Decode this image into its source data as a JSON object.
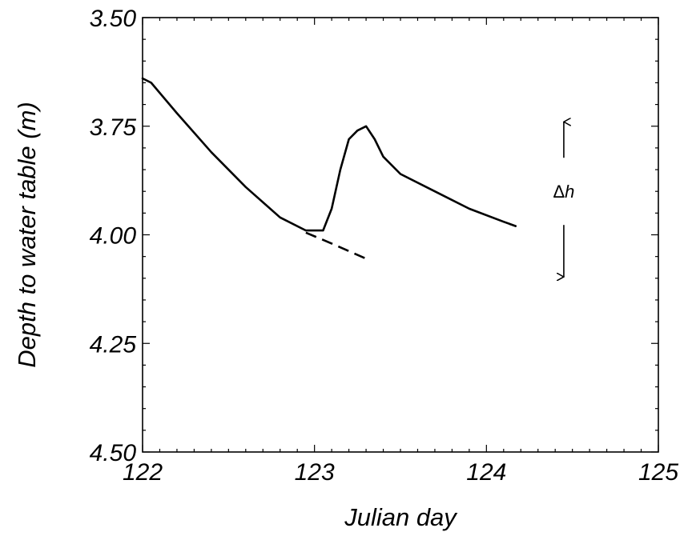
{
  "chart_data": {
    "type": "line",
    "xlabel": "Julian day",
    "ylabel": "Depth to water table (m)",
    "xlim": [
      122,
      125
    ],
    "ylim": [
      3.5,
      4.5
    ],
    "y_inverted": true,
    "grid": false,
    "xticks": [
      122,
      123,
      124,
      125
    ],
    "xtick_labels": [
      "122",
      "123",
      "124",
      "125"
    ],
    "yticks": [
      3.5,
      3.75,
      4.0,
      4.25,
      4.5
    ],
    "ytick_labels": [
      "3.50",
      "3.75",
      "4.00",
      "4.25",
      "4.50"
    ],
    "series": [
      {
        "style": "solid",
        "x": [
          122.0,
          122.05,
          122.2,
          122.4,
          122.6,
          122.8,
          122.95,
          123.0,
          123.05,
          123.1,
          123.15,
          123.2,
          123.25,
          123.3,
          123.35,
          123.4,
          123.5,
          123.7,
          123.9,
          124.1,
          124.17
        ],
        "y": [
          3.64,
          3.65,
          3.72,
          3.81,
          3.89,
          3.96,
          3.99,
          3.99,
          3.99,
          3.94,
          3.85,
          3.78,
          3.76,
          3.75,
          3.78,
          3.82,
          3.86,
          3.9,
          3.94,
          3.97,
          3.98
        ]
      },
      {
        "style": "dashed",
        "x": [
          122.95,
          123.1,
          123.3
        ],
        "y": [
          3.995,
          4.02,
          4.055
        ]
      }
    ],
    "annotation": {
      "symbol": "Δ",
      "variable": "h",
      "x": 124.45,
      "y_top": 3.74,
      "y_bottom": 4.06,
      "y_label": 3.9
    }
  }
}
